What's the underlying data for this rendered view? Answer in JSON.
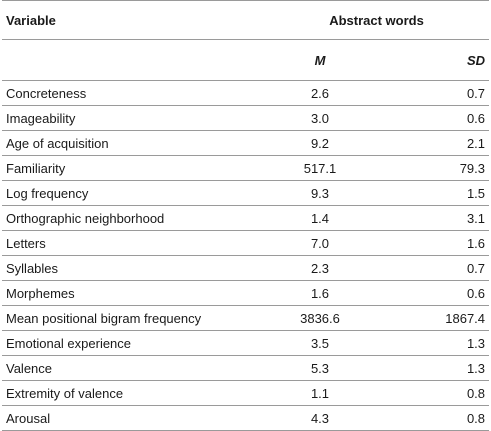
{
  "table": {
    "header": {
      "variable": "Variable",
      "group": "Abstract words",
      "m": "M",
      "sd": "SD"
    },
    "rows": [
      {
        "variable": "Concreteness",
        "m": "2.6",
        "sd": "0.7"
      },
      {
        "variable": "Imageability",
        "m": "3.0",
        "sd": "0.6"
      },
      {
        "variable": "Age of acquisition",
        "m": "9.2",
        "sd": "2.1"
      },
      {
        "variable": "Familiarity",
        "m": "517.1",
        "sd": "79.3"
      },
      {
        "variable": "Log frequency",
        "m": "9.3",
        "sd": "1.5"
      },
      {
        "variable": "Orthographic neighborhood",
        "m": "1.4",
        "sd": "3.1"
      },
      {
        "variable": "Letters",
        "m": "7.0",
        "sd": "1.6"
      },
      {
        "variable": "Syllables",
        "m": "2.3",
        "sd": "0.7"
      },
      {
        "variable": "Morphemes",
        "m": "1.6",
        "sd": "0.6"
      },
      {
        "variable": "Mean positional bigram frequency",
        "m": "3836.6",
        "sd": "1867.4"
      },
      {
        "variable": "Emotional experience",
        "m": "3.5",
        "sd": "1.3"
      },
      {
        "variable": "Valence",
        "m": "5.3",
        "sd": "1.3"
      },
      {
        "variable": "Extremity of valence",
        "m": "1.1",
        "sd": "0.8"
      },
      {
        "variable": "Arousal",
        "m": "4.3",
        "sd": "0.8"
      }
    ]
  }
}
